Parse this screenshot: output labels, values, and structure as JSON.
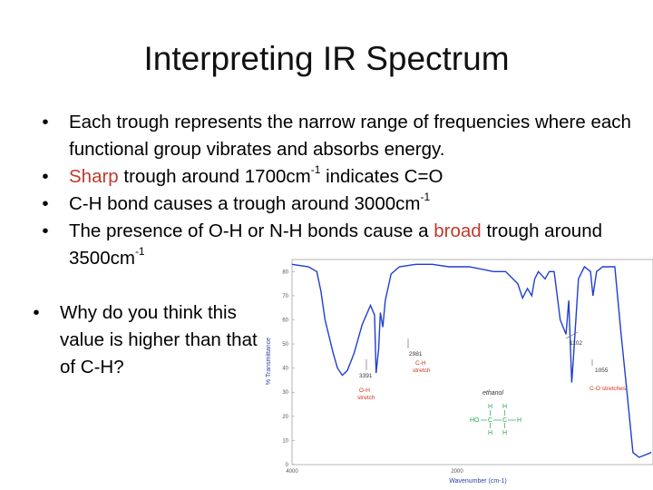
{
  "slide": {
    "title": "Interpreting IR Spectrum",
    "bullet_glyph": "•",
    "bullets": [
      {
        "text": "Each trough represents the narrow range of frequencies where each functional group vibrates and absorbs energy."
      },
      {
        "pre": "",
        "emph": "Sharp",
        "mid": " trough around 1700cm",
        "sup": "-1",
        "post": " indicates C=O"
      },
      {
        "pre": "C-H bond causes a trough around 3000cm",
        "sup": "-1"
      },
      {
        "pre": "The presence of O-H or N-H bonds cause a ",
        "emph": "broad",
        "mid": " trough around 3500cm",
        "sup": "-1"
      }
    ],
    "question": "Why do you think this value is higher than that of C-H?",
    "emph_color": "#c0392b"
  },
  "spectrum": {
    "y_axis_label": "% Transmittance",
    "x_axis_label": "Wavenumber (cm-1)",
    "y_ticks": [
      "80",
      "70",
      "60",
      "50",
      "40",
      "30",
      "20",
      "10",
      "0"
    ],
    "x_ticks": [
      "4000",
      "2000"
    ],
    "annotations": {
      "oh_value": "3391",
      "oh_label_1": "O-H",
      "oh_label_2": "stretch",
      "ch_value": "2981",
      "ch_label_1": "C-H",
      "ch_label_2": "stretch",
      "co_value_1": "1102",
      "co_value_2": "1055",
      "co_label": "C-O stretches",
      "compound": "ethanol",
      "struct_left": "HO",
      "struct_c": "C",
      "struct_h": "H"
    },
    "line_color": "#1f3fd1",
    "label_color": "#d0321e",
    "struct_color": "#2aa84a"
  },
  "chart_data": {
    "type": "line",
    "title": "",
    "xlabel": "Wavenumber (cm-1)",
    "ylabel": "% Transmittance",
    "x_reversed": true,
    "xlim": [
      4000,
      400
    ],
    "ylim": [
      0,
      80
    ],
    "series": [
      {
        "values_xy": [
          [
            4000,
            83
          ],
          [
            3800,
            82
          ],
          [
            3700,
            80
          ],
          [
            3650,
            72
          ],
          [
            3600,
            60
          ],
          [
            3500,
            46
          ],
          [
            3450,
            40
          ],
          [
            3391,
            37
          ],
          [
            3330,
            39
          ],
          [
            3250,
            46
          ],
          [
            3150,
            58
          ],
          [
            3050,
            66
          ],
          [
            3000,
            62
          ],
          [
            2981,
            38
          ],
          [
            2950,
            48
          ],
          [
            2930,
            63
          ],
          [
            2900,
            57
          ],
          [
            2870,
            68
          ],
          [
            2800,
            79
          ],
          [
            2700,
            82
          ],
          [
            2500,
            83
          ],
          [
            2300,
            83
          ],
          [
            2100,
            82
          ],
          [
            1900,
            82
          ],
          [
            1800,
            81
          ],
          [
            1700,
            80
          ],
          [
            1650,
            80
          ],
          [
            1600,
            80
          ],
          [
            1500,
            75
          ],
          [
            1460,
            69
          ],
          [
            1420,
            73
          ],
          [
            1385,
            70
          ],
          [
            1360,
            77
          ],
          [
            1330,
            80
          ],
          [
            1275,
            77
          ],
          [
            1240,
            80
          ],
          [
            1200,
            80
          ],
          [
            1150,
            60
          ],
          [
            1102,
            54
          ],
          [
            1080,
            68
          ],
          [
            1055,
            34
          ],
          [
            1040,
            45
          ],
          [
            1000,
            77
          ],
          [
            950,
            82
          ],
          [
            900,
            80
          ],
          [
            880,
            70
          ],
          [
            850,
            80
          ],
          [
            800,
            82
          ],
          [
            700,
            82
          ],
          [
            650,
            55
          ],
          [
            600,
            30
          ],
          [
            550,
            5
          ],
          [
            500,
            3
          ],
          [
            450,
            4
          ],
          [
            400,
            5
          ]
        ]
      }
    ],
    "annotations": [
      {
        "x": 3391,
        "text": "3391",
        "label": "O-H stretch"
      },
      {
        "x": 2981,
        "text": "2981",
        "label": "C-H stretch"
      },
      {
        "x": 1102,
        "text": "1102"
      },
      {
        "x": 1055,
        "text": "1055",
        "label": "C-O stretches"
      }
    ]
  }
}
